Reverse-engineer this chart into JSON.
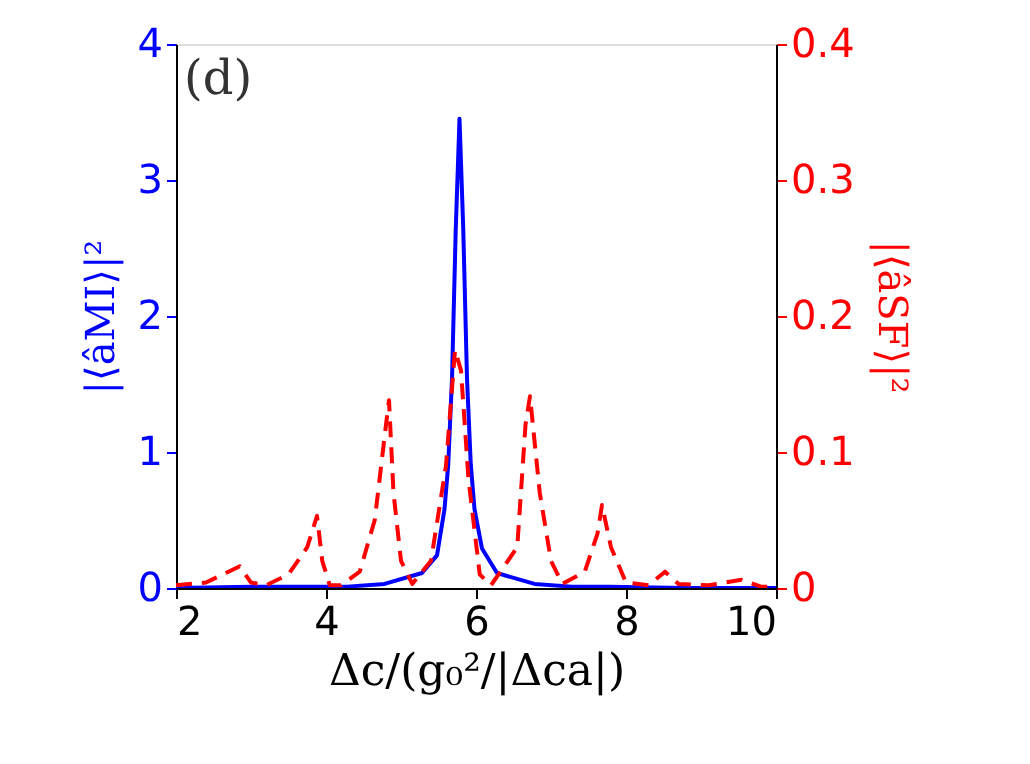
{
  "chart_data": {
    "type": "line",
    "xlabel": "Δc/(g₀²/|Δca|)",
    "ylabel": "|⟨âMI⟩|²",
    "y2label": "|⟨âSF⟩|²",
    "annotations": [
      "(d)"
    ],
    "xlim": [
      2,
      10
    ],
    "xticks": [
      2,
      4,
      6,
      8,
      10
    ],
    "ylim": [
      0,
      4
    ],
    "yticks": [
      0,
      1,
      2,
      3,
      4
    ],
    "y2lim": [
      0,
      0.4
    ],
    "y2ticks": [
      0,
      0.1,
      0.2,
      0.3,
      0.4
    ],
    "series": [
      {
        "color": "#0000ff",
        "line_style": "solid",
        "x": [
          2,
          3,
          3.78,
          4.28,
          4.78,
          5.28,
          5.48,
          5.58,
          5.63,
          5.68,
          5.73,
          5.78,
          5.83,
          5.88,
          5.93,
          5.98,
          6.08,
          6.28,
          6.78,
          7.28,
          7.78,
          8.78,
          10
        ],
        "values": [
          0,
          0.01,
          0.01,
          0.01,
          0.03,
          0.11,
          0.24,
          0.58,
          0.91,
          1.54,
          2.64,
          3.45,
          2.64,
          1.54,
          0.91,
          0.58,
          0.29,
          0.11,
          0.03,
          0.01,
          0.01,
          0,
          0
        ]
      },
      {
        "color": "#ff0000",
        "line_style": "dashed",
        "axis": "y2",
        "x": [
          2,
          2.4,
          2.7,
          2.85,
          3.0,
          3.2,
          3.5,
          3.75,
          3.88,
          3.95,
          4.05,
          4.2,
          4.45,
          4.65,
          4.8,
          4.84,
          4.9,
          5.0,
          5.15,
          5.4,
          5.6,
          5.72,
          5.8,
          5.9,
          6.05,
          6.2,
          6.55,
          6.66,
          6.72,
          6.85,
          7.0,
          7.15,
          7.45,
          7.62,
          7.68,
          7.8,
          8.0,
          8.3,
          8.52,
          8.7,
          9.1,
          9.54,
          9.8,
          10
        ],
        "values": [
          0.002,
          0.004,
          0.012,
          0.016,
          0.004,
          0.002,
          0.01,
          0.03,
          0.053,
          0.02,
          0.002,
          0.002,
          0.012,
          0.05,
          0.12,
          0.138,
          0.07,
          0.02,
          0.003,
          0.02,
          0.09,
          0.175,
          0.16,
          0.08,
          0.01,
          0.002,
          0.03,
          0.12,
          0.141,
          0.07,
          0.02,
          0.003,
          0.012,
          0.04,
          0.061,
          0.03,
          0.004,
          0.002,
          0.012,
          0.003,
          0.002,
          0.006,
          0.001,
          0.001
        ]
      }
    ]
  }
}
